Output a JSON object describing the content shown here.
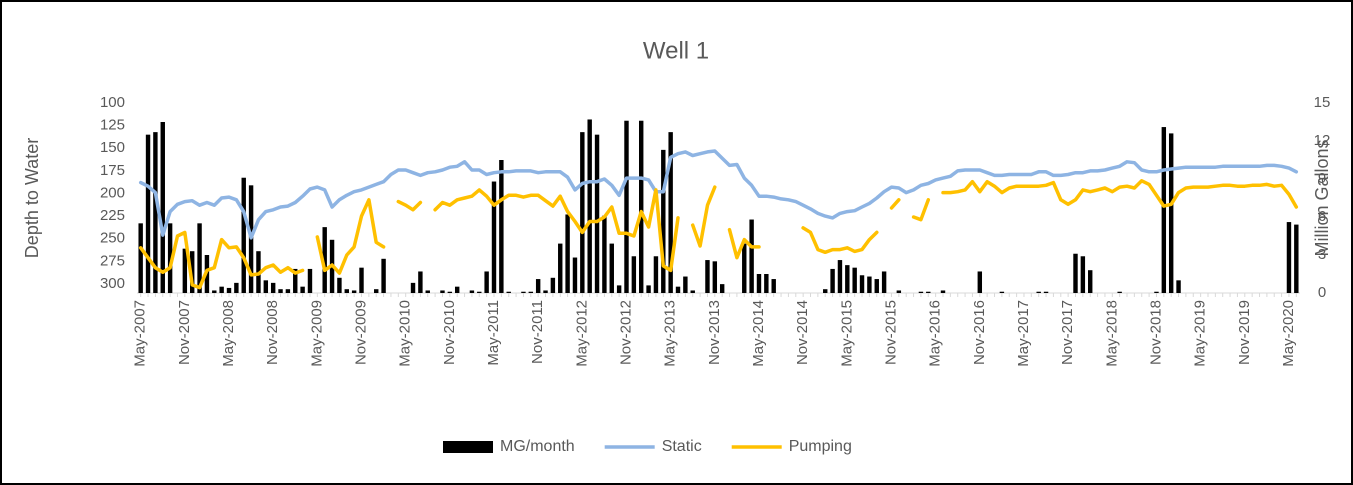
{
  "chart_data": {
    "type": "combo",
    "title": "Well 1",
    "y_label": "Depth to Water",
    "y2_label": "Million Gallons",
    "ylim": [
      100,
      310
    ],
    "y_inverted": true,
    "yticks": [
      100,
      125,
      150,
      175,
      200,
      225,
      250,
      275,
      300
    ],
    "y2lim": [
      0,
      15
    ],
    "y2ticks": [
      0,
      3,
      6,
      9,
      12,
      15
    ],
    "grid": false,
    "legend": "bottom",
    "categories": [
      "May-2007",
      null,
      null,
      null,
      null,
      null,
      "Nov-2007",
      null,
      null,
      null,
      null,
      null,
      "May-2008",
      null,
      null,
      null,
      null,
      null,
      "Nov-2008",
      null,
      null,
      null,
      null,
      null,
      "May-2009",
      null,
      null,
      null,
      null,
      null,
      "Nov-2009",
      null,
      null,
      null,
      null,
      null,
      "May-2010",
      null,
      null,
      null,
      null,
      null,
      "Nov-2010",
      null,
      null,
      null,
      null,
      null,
      "May-2011",
      null,
      null,
      null,
      null,
      null,
      "Nov-2011",
      null,
      null,
      null,
      null,
      null,
      "May-2012",
      null,
      null,
      null,
      null,
      null,
      "Nov-2012",
      null,
      null,
      null,
      null,
      null,
      "May-2013",
      null,
      null,
      null,
      null,
      null,
      "Nov-2013",
      null,
      null,
      null,
      null,
      null,
      "May-2014",
      null,
      null,
      null,
      null,
      null,
      "Nov-2014",
      null,
      null,
      null,
      null,
      null,
      "May-2015",
      null,
      null,
      null,
      null,
      null,
      "Nov-2015",
      null,
      null,
      null,
      null,
      null,
      "May-2016",
      null,
      null,
      null,
      null,
      null,
      "Nov-2016",
      null,
      null,
      null,
      null,
      null,
      "May-2017",
      null,
      null,
      null,
      null,
      null,
      "Nov-2017",
      null,
      null,
      null,
      null,
      null,
      "May-2018",
      null,
      null,
      null,
      null,
      null,
      "Nov-2018",
      null,
      null,
      null,
      null,
      null,
      "May-2019",
      null,
      null,
      null,
      null,
      null,
      "Nov-2019",
      null,
      null,
      null,
      null,
      null,
      "May-2020",
      null
    ],
    "series": [
      {
        "name": "MG/month",
        "type": "bar",
        "axis": "y2",
        "color": "#000000",
        "values": [
          5.5,
          12.5,
          12.7,
          13.5,
          5.5,
          0,
          3.5,
          3.3,
          5.5,
          3.0,
          0.2,
          0.5,
          0.4,
          0.8,
          9.1,
          8.5,
          3.3,
          1.0,
          0.8,
          0.3,
          0.3,
          1.9,
          0.5,
          1.9,
          0,
          5.2,
          4.2,
          1.2,
          0.3,
          0.2,
          2.0,
          0,
          0.3,
          2.7,
          0,
          0,
          0,
          0.8,
          1.7,
          0.2,
          0,
          0.2,
          0.1,
          0.5,
          0,
          0.2,
          0.1,
          1.7,
          8.8,
          10.5,
          0.1,
          0,
          0.1,
          0.1,
          1.1,
          0.2,
          1.2,
          3.9,
          6.2,
          2.8,
          12.7,
          13.7,
          12.5,
          6.1,
          3.9,
          0.6,
          13.6,
          2.9,
          13.6,
          0.6,
          2.9,
          11.3,
          12.7,
          0.5,
          1.3,
          0.2,
          0,
          2.6,
          2.5,
          0.7,
          0,
          0,
          3.9,
          5.8,
          1.5,
          1.5,
          1.1,
          0,
          0,
          0,
          0,
          0,
          0,
          0.3,
          1.9,
          2.6,
          2.2,
          2.0,
          1.4,
          1.3,
          1.1,
          1.7,
          0,
          0.2,
          0,
          0,
          0.1,
          0.1,
          0,
          0.2,
          0,
          0,
          0,
          0,
          1.7,
          0,
          0,
          0.1,
          0,
          0,
          0,
          0,
          0.1,
          0.1,
          0,
          0,
          0,
          3.1,
          2.9,
          1.8,
          0,
          0,
          0,
          0.1,
          0,
          0,
          0,
          0,
          0.1,
          13.1,
          12.6,
          1.0,
          0,
          0,
          0,
          0,
          0,
          0,
          0,
          0,
          0,
          0,
          0,
          0,
          0,
          0,
          5.6,
          5.4
        ]
      },
      {
        "name": "Static",
        "type": "line",
        "color": "#8eb4e3",
        "values": [
          188,
          192,
          199,
          246,
          220,
          212,
          209,
          208,
          213,
          210,
          213,
          205,
          204,
          207,
          220,
          249,
          229,
          220,
          218,
          215,
          214,
          210,
          203,
          195,
          193,
          196,
          215,
          207,
          202,
          198,
          196,
          193,
          190,
          187,
          179,
          174,
          174,
          177,
          180,
          177,
          176,
          174,
          171,
          170,
          165,
          174,
          174,
          179,
          177,
          176,
          176,
          175,
          175,
          175,
          177,
          176,
          176,
          176,
          182,
          196,
          189,
          187,
          187,
          184,
          191,
          202,
          183,
          183,
          183,
          185,
          198,
          198,
          160,
          156,
          154,
          158,
          156,
          154,
          153,
          161,
          169,
          168,
          183,
          191,
          203,
          203,
          204,
          206,
          207,
          209,
          213,
          217,
          222,
          225,
          227,
          222,
          220,
          219,
          215,
          211,
          205,
          198,
          193,
          194,
          199,
          196,
          191,
          189,
          185,
          183,
          181,
          175,
          174,
          174,
          174,
          177,
          180,
          180,
          179,
          179,
          179,
          179,
          176,
          176,
          180,
          180,
          179,
          177,
          177,
          175,
          175,
          174,
          172,
          170,
          165,
          166,
          174,
          176,
          176,
          174,
          173,
          172,
          171,
          171,
          171,
          171,
          171,
          170,
          170,
          170,
          170,
          170,
          170,
          169,
          169,
          170,
          172,
          176
        ]
      },
      {
        "name": "Pumping",
        "type": "line",
        "color": "#ffc000",
        "values": [
          260,
          271,
          282,
          287,
          282,
          247,
          243,
          301,
          304,
          285,
          282,
          251,
          260,
          259,
          271,
          290,
          289,
          282,
          279,
          287,
          282,
          288,
          285,
          null,
          248,
          285,
          279,
          288,
          268,
          259,
          225,
          207,
          254,
          259,
          null,
          209,
          213,
          218,
          210,
          null,
          218,
          210,
          213,
          207,
          205,
          203,
          196,
          203,
          213,
          207,
          202,
          202,
          204,
          202,
          202,
          208,
          214,
          203,
          220,
          231,
          243,
          231,
          231,
          226,
          215,
          244,
          244,
          247,
          220,
          237,
          196,
          280,
          285,
          227,
          null,
          235,
          258,
          213,
          193,
          null,
          240,
          271,
          251,
          259,
          259,
          null,
          null,
          null,
          null,
          null,
          238,
          243,
          262,
          265,
          262,
          262,
          260,
          264,
          262,
          251,
          243,
          null,
          216,
          207,
          null,
          226,
          229,
          207,
          null,
          199,
          199,
          198,
          196,
          187,
          198,
          187,
          192,
          199,
          194,
          192,
          192,
          192,
          192,
          191,
          188,
          207,
          212,
          207,
          196,
          198,
          196,
          194,
          198,
          193,
          192,
          194,
          186,
          190,
          202,
          214,
          212,
          199,
          194,
          193,
          193,
          193,
          192,
          191,
          191,
          192,
          192,
          191,
          191,
          190,
          192,
          191,
          201,
          215
        ]
      }
    ]
  }
}
